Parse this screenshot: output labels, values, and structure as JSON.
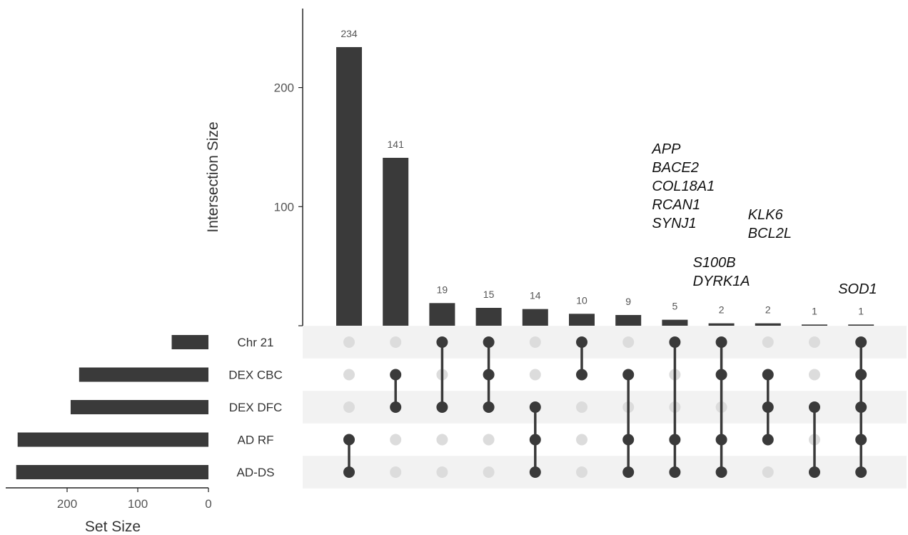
{
  "chart_data": {
    "type": "upset",
    "intersection_axis": {
      "label": "Intersection Size",
      "ticks": [
        0,
        100,
        200
      ],
      "tick_labels": [
        "",
        "100",
        "200"
      ],
      "ylim": [
        0,
        270
      ]
    },
    "set_size_axis": {
      "label": "Set Size",
      "ticks": [
        200,
        100,
        0
      ],
      "tick_labels": [
        "200",
        "100",
        "0"
      ],
      "xlim": [
        0,
        280
      ]
    },
    "sets": [
      {
        "name": "Chr 21",
        "size": 52
      },
      {
        "name": "DEX CBC",
        "size": 183
      },
      {
        "name": "DEX DFC",
        "size": 195
      },
      {
        "name": "AD RF",
        "size": 270
      },
      {
        "name": "AD-DS",
        "size": 272
      }
    ],
    "intersections": [
      {
        "size": 234,
        "label": "234",
        "members": [
          "AD RF",
          "AD-DS"
        ]
      },
      {
        "size": 141,
        "label": "141",
        "members": [
          "DEX CBC",
          "DEX DFC"
        ]
      },
      {
        "size": 19,
        "label": "19",
        "members": [
          "Chr 21",
          "DEX DFC"
        ]
      },
      {
        "size": 15,
        "label": "15",
        "members": [
          "Chr 21",
          "DEX CBC",
          "DEX DFC"
        ]
      },
      {
        "size": 14,
        "label": "14",
        "members": [
          "DEX DFC",
          "AD RF",
          "AD-DS"
        ]
      },
      {
        "size": 10,
        "label": "10",
        "members": [
          "Chr 21",
          "DEX CBC"
        ]
      },
      {
        "size": 9,
        "label": "9",
        "members": [
          "DEX CBC",
          "AD RF",
          "AD-DS"
        ]
      },
      {
        "size": 5,
        "label": "5",
        "members": [
          "Chr 21",
          "AD RF",
          "AD-DS"
        ]
      },
      {
        "size": 2,
        "label": "2",
        "members": [
          "Chr 21",
          "DEX CBC",
          "AD RF",
          "AD-DS"
        ]
      },
      {
        "size": 2,
        "label": "2",
        "members": [
          "DEX CBC",
          "DEX DFC",
          "AD RF"
        ]
      },
      {
        "size": 1,
        "label": "1",
        "members": [
          "DEX DFC",
          "AD-DS"
        ]
      },
      {
        "size": 1,
        "label": "1",
        "members": [
          "Chr 21",
          "DEX CBC",
          "DEX DFC",
          "AD RF",
          "AD-DS"
        ]
      }
    ],
    "annotations": [
      {
        "column": 7,
        "lines": [
          "APP",
          "BACE2",
          "COL18A1",
          "RCAN1",
          "SYNJ1"
        ]
      },
      {
        "column": 8,
        "lines": [
          "S100B",
          "DYRK1A"
        ]
      },
      {
        "column": 9,
        "lines": [
          "KLK6",
          "BCL2L"
        ]
      },
      {
        "column": 11,
        "lines": [
          "SOD1"
        ]
      }
    ],
    "colors": {
      "bar": "#3a3a3a",
      "dot_active": "#3a3a3a",
      "dot_inactive": "#dcdcdc",
      "stripe": "#f2f2f2",
      "axis": "#222222",
      "tick_text": "#555555"
    }
  }
}
